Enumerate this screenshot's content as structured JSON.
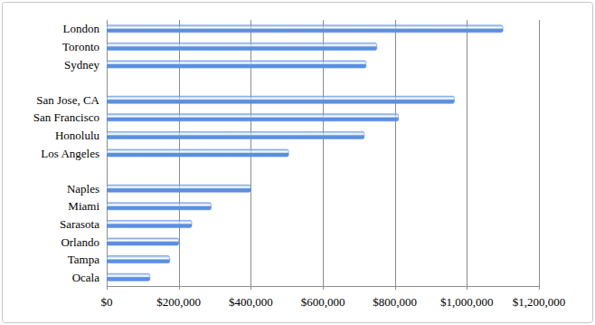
{
  "chart_data": {
    "type": "bar",
    "orientation": "horizontal",
    "categories": [
      "London",
      "Toronto",
      "Sydney",
      null,
      "San Jose, CA",
      "San Francisco",
      "Honolulu",
      "Los Angeles",
      null,
      "Naples",
      "Miami",
      "Sarasota",
      "Orlando",
      "Tampa",
      "Ocala"
    ],
    "values": [
      1100000,
      750000,
      720000,
      null,
      965000,
      810000,
      715000,
      505000,
      null,
      400000,
      290000,
      236000,
      200000,
      175000,
      120000
    ],
    "color": "#5b8fe0",
    "xlim": [
      0,
      1200000
    ],
    "xticks": [
      {
        "value": 0,
        "label": "$0"
      },
      {
        "value": 200000,
        "label": "$200,000"
      },
      {
        "value": 400000,
        "label": "$400,000"
      },
      {
        "value": 600000,
        "label": "$600,000"
      },
      {
        "value": 800000,
        "label": "$800,000"
      },
      {
        "value": 1000000,
        "label": "$1,000,000"
      },
      {
        "value": 1200000,
        "label": "$1,200,000"
      }
    ],
    "grid": true
  }
}
